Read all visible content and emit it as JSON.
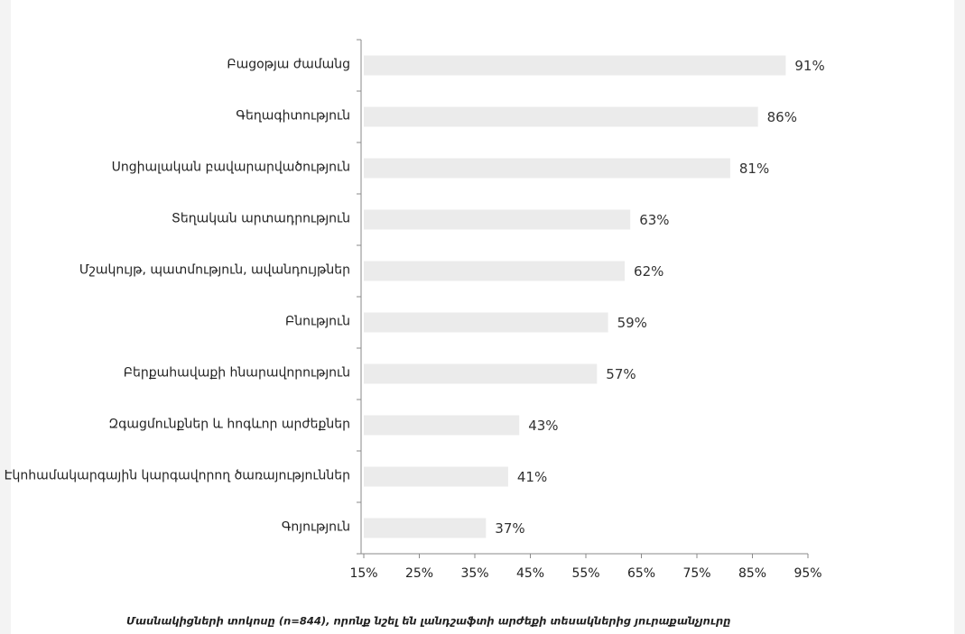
{
  "chart_data": {
    "type": "barh",
    "caption": "Մասնակիցների տոկոսը (n=844), որոնք նշել են լանդշաֆտի արժեքի տեսակներից յուրաքանչյուրը",
    "categories": [
      "Բացօթյա ժամանց",
      "Գեղագիտություն",
      "Սոցիալական բավարարվածություն",
      "Տեղական արտադրություն",
      "Մշակույթ, պատմություն, ավանդույթներ",
      "Բնություն",
      "Բերքահավաքի հնարավորություն",
      "Զգացմունքներ և հոգևոր արժեքներ",
      "Էկոհամակարգային կարգավորող ծառայություններ",
      "Գոյություն"
    ],
    "values": [
      91,
      86,
      81,
      63,
      62,
      59,
      57,
      43,
      41,
      37
    ],
    "value_labels": [
      "91%",
      "86%",
      "81%",
      "63%",
      "62%",
      "59%",
      "57%",
      "43%",
      "41%",
      "37%"
    ],
    "color": "#ebebeb",
    "xlim": [
      15,
      95
    ],
    "xticks": [
      {
        "value": 15,
        "label": "15%"
      },
      {
        "value": 25,
        "label": "25%"
      },
      {
        "value": 35,
        "label": "35%"
      },
      {
        "value": 45,
        "label": "45%"
      },
      {
        "value": 55,
        "label": "55%"
      },
      {
        "value": 65,
        "label": "65%"
      },
      {
        "value": 75,
        "label": "75%"
      },
      {
        "value": 85,
        "label": "85%"
      },
      {
        "value": 95,
        "label": "95%"
      }
    ]
  }
}
